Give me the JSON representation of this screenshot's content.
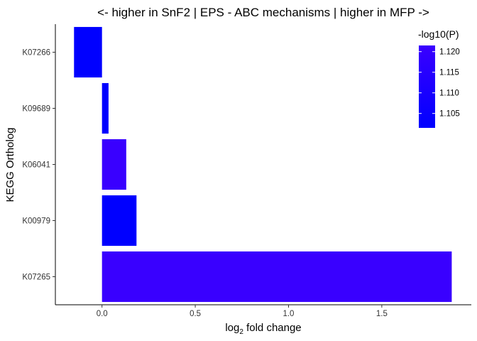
{
  "chart_data": {
    "type": "bar",
    "orientation": "horizontal",
    "title": "<- higher in SnF2 | EPS - ABC mechanisms | higher in MFP ->",
    "xlabel": "log",
    "xlabel_subscript": "2",
    "xlabel_suffix": " fold change",
    "ylabel": "KEGG Ortholog",
    "xlim": [
      -0.25,
      1.98
    ],
    "x_ticks": [
      0.0,
      0.5,
      1.0,
      1.5
    ],
    "x_tick_labels": [
      "0.0",
      "0.5",
      "1.0",
      "1.5"
    ],
    "categories": [
      "K07266",
      "K09689",
      "K06041",
      "K00979",
      "K07265"
    ],
    "values": [
      -0.15,
      0.035,
      0.13,
      0.185,
      1.875
    ],
    "neglog10p": [
      1.1015,
      1.1015,
      1.121,
      1.1015,
      1.121
    ],
    "grid": false,
    "legend": {
      "title": "-log10(P)",
      "position": "top-right",
      "range": [
        1.1015,
        1.1215
      ],
      "ticks": [
        1.105,
        1.11,
        1.115,
        1.12
      ],
      "tick_labels": [
        "1.105",
        "1.110",
        "1.115",
        "1.120"
      ],
      "color_low": "#0000ff",
      "color_high": "#3a00ff"
    }
  }
}
